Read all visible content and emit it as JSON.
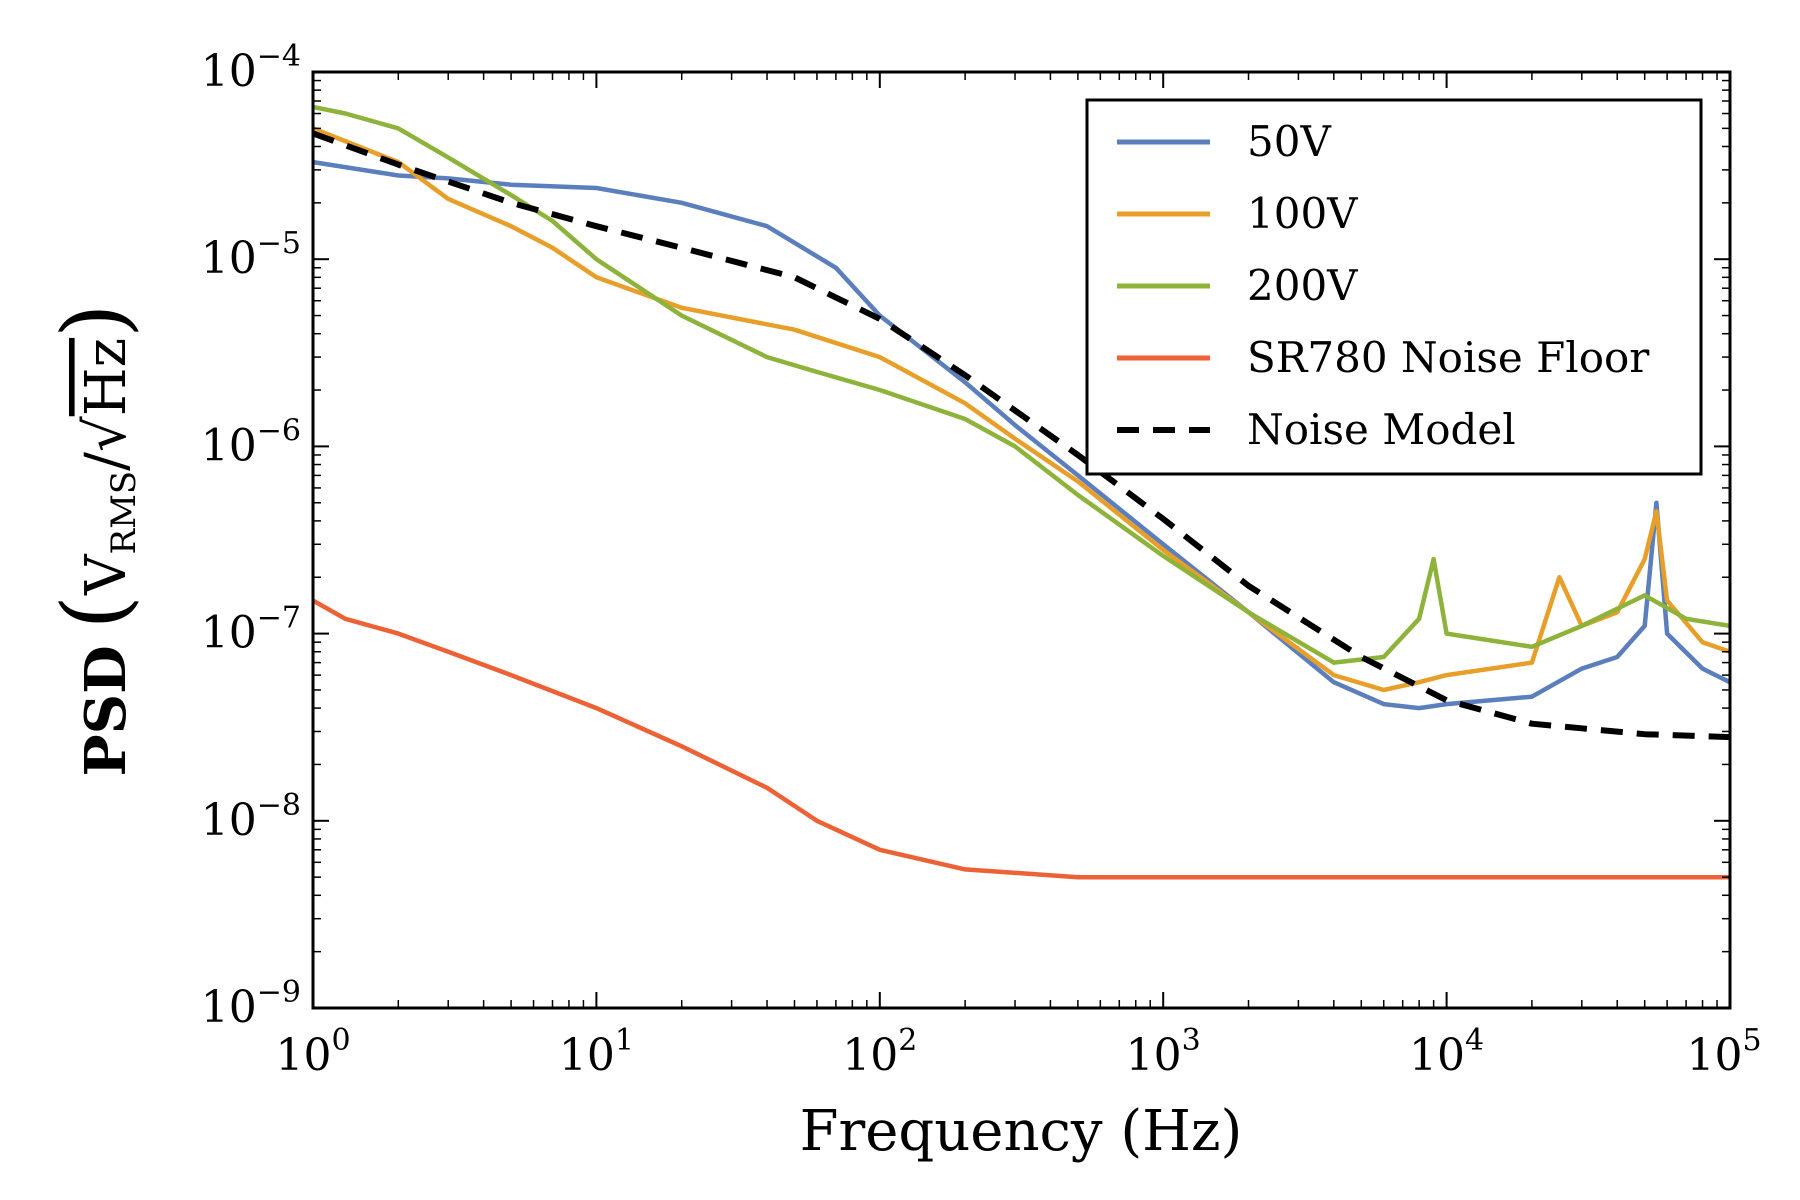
{
  "chart_data": {
    "type": "line",
    "title": "",
    "xlabel": "Frequency (Hz)",
    "ylabel": {
      "prefix": "PSD",
      "unit_base": "V",
      "unit_sub": "RMS",
      "unit_sep": "/",
      "unit_sqrt": "√",
      "unit_den": "Hz"
    },
    "xscale": "log",
    "yscale": "log",
    "xlim": [
      1,
      100000
    ],
    "ylim": [
      1e-09,
      0.0001
    ],
    "x_ticks": [
      {
        "value": 1,
        "base": "10",
        "exp": "0"
      },
      {
        "value": 10,
        "base": "10",
        "exp": "1"
      },
      {
        "value": 100,
        "base": "10",
        "exp": "2"
      },
      {
        "value": 1000,
        "base": "10",
        "exp": "3"
      },
      {
        "value": 10000,
        "base": "10",
        "exp": "4"
      },
      {
        "value": 100000,
        "base": "10",
        "exp": "5"
      }
    ],
    "y_ticks": [
      {
        "value": 1e-09,
        "base": "10",
        "exp": "−9"
      },
      {
        "value": 1e-08,
        "base": "10",
        "exp": "−8"
      },
      {
        "value": 1e-07,
        "base": "10",
        "exp": "−7"
      },
      {
        "value": 1e-06,
        "base": "10",
        "exp": "−6"
      },
      {
        "value": 1e-05,
        "base": "10",
        "exp": "−5"
      },
      {
        "value": 0.0001,
        "base": "10",
        "exp": "−4"
      }
    ],
    "grid": false,
    "legend_position": "top-right",
    "series": [
      {
        "name": "50V",
        "color": "#5b7fbd",
        "style": "solid",
        "x": [
          1,
          2,
          3,
          5,
          10,
          20,
          40,
          70,
          100,
          200,
          300,
          500,
          1000,
          2000,
          4000,
          6000,
          8000,
          10000,
          20000,
          30000,
          40000,
          50000,
          55000,
          60000,
          80000,
          100000
        ],
        "y": [
          3.3e-05,
          2.8e-05,
          2.7e-05,
          2.5e-05,
          2.4e-05,
          2e-05,
          1.5e-05,
          9e-06,
          5e-06,
          2.2e-06,
          1.3e-06,
          7e-07,
          3e-07,
          1.3e-07,
          5.5e-08,
          4.2e-08,
          4e-08,
          4.2e-08,
          4.6e-08,
          6.5e-08,
          7.5e-08,
          1.1e-07,
          5e-07,
          1e-07,
          6.5e-08,
          5.5e-08
        ]
      },
      {
        "name": "100V",
        "color": "#e89f2a",
        "style": "solid",
        "x": [
          1,
          2,
          3,
          5,
          7,
          10,
          20,
          50,
          100,
          200,
          300,
          500,
          1000,
          2000,
          4000,
          6000,
          8000,
          10000,
          20000,
          25000,
          30000,
          40000,
          50000,
          55000,
          60000,
          80000,
          100000
        ],
        "y": [
          5e-05,
          3.3e-05,
          2.1e-05,
          1.5e-05,
          1.15e-05,
          8e-06,
          5.5e-06,
          4.2e-06,
          3e-06,
          1.7e-06,
          1.1e-06,
          6.5e-07,
          2.8e-07,
          1.3e-07,
          6e-08,
          5e-08,
          5.5e-08,
          6e-08,
          7e-08,
          2e-07,
          1.1e-07,
          1.3e-07,
          2.5e-07,
          4.5e-07,
          1.5e-07,
          9e-08,
          8e-08
        ]
      },
      {
        "name": "200V",
        "color": "#8db33a",
        "style": "solid",
        "x": [
          1,
          1.3,
          2,
          3,
          5,
          7,
          10,
          20,
          40,
          60,
          100,
          200,
          300,
          500,
          1000,
          2000,
          4000,
          6000,
          8000,
          9000,
          10000,
          20000,
          30000,
          50000,
          70000,
          100000
        ],
        "y": [
          6.5e-05,
          6e-05,
          5e-05,
          3.5e-05,
          2.2e-05,
          1.6e-05,
          1e-05,
          5e-06,
          3e-06,
          2.5e-06,
          2e-06,
          1.4e-06,
          1e-06,
          5.5e-07,
          2.6e-07,
          1.3e-07,
          7e-08,
          7.5e-08,
          1.2e-07,
          2.5e-07,
          1e-07,
          8.5e-08,
          1.1e-07,
          1.6e-07,
          1.2e-07,
          1.1e-07
        ]
      },
      {
        "name": "SR780 Noise Floor",
        "color": "#ec6236",
        "style": "solid",
        "x": [
          1,
          1.3,
          2,
          3,
          5,
          10,
          20,
          40,
          60,
          100,
          200,
          500,
          1000,
          2000,
          5000,
          10000,
          20000,
          50000,
          100000
        ],
        "y": [
          1.5e-07,
          1.2e-07,
          1e-07,
          8e-08,
          6e-08,
          4e-08,
          2.5e-08,
          1.5e-08,
          1e-08,
          7e-09,
          5.5e-09,
          5e-09,
          5e-09,
          5e-09,
          5e-09,
          5e-09,
          5e-09,
          5e-09,
          5e-09
        ]
      },
      {
        "name": "Noise Model",
        "color": "#000000",
        "style": "dashed",
        "x": [
          1,
          2,
          5,
          10,
          20,
          50,
          100,
          200,
          500,
          1000,
          2000,
          5000,
          10000,
          20000,
          50000,
          100000
        ],
        "y": [
          4.7e-05,
          3.2e-05,
          2e-05,
          1.5e-05,
          1.15e-05,
          8e-06,
          4.8e-06,
          2.4e-06,
          9e-07,
          4.1e-07,
          1.8e-07,
          7.5e-08,
          4.4e-08,
          3.3e-08,
          2.9e-08,
          2.8e-08
        ]
      }
    ]
  }
}
